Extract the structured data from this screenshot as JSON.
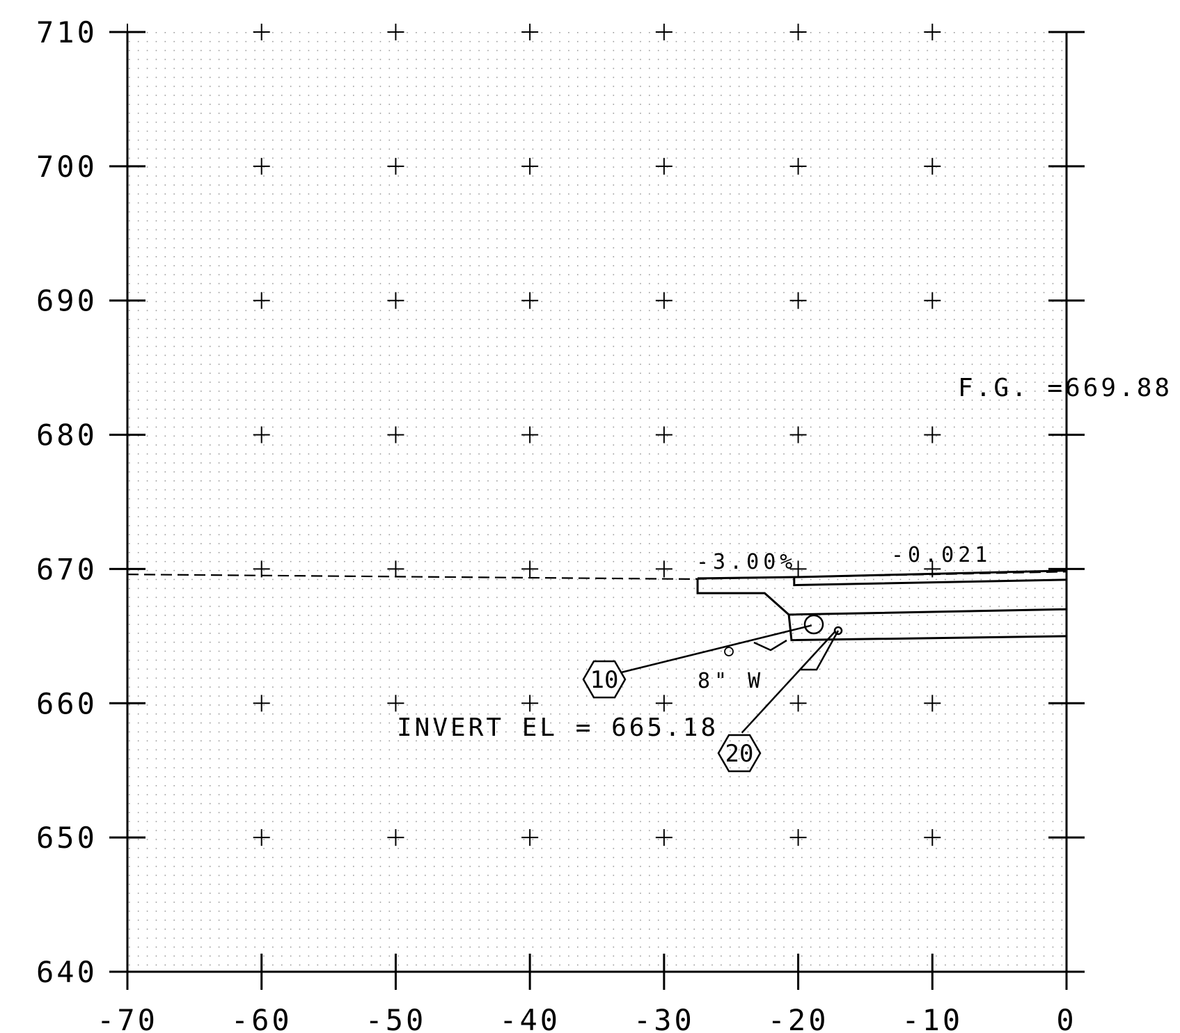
{
  "chart_data": {
    "type": "cross-section",
    "x_ticks": [
      "-70",
      "-60",
      "-50",
      "-40",
      "-30",
      "-20",
      "-10",
      "0"
    ],
    "y_ticks": [
      "640",
      "650",
      "660",
      "670",
      "680",
      "690",
      "700",
      "710"
    ],
    "xlim": [
      -70,
      0
    ],
    "ylim": [
      640,
      710
    ],
    "grid": "dotted, with crosshair markers at 10-unit intervals",
    "annotations": {
      "fg": "F.G. =669.88",
      "slope_left": "-3.00%",
      "slope_right": "-0.021",
      "pipe_size": "8\" W",
      "invert": "INVERT EL = 665.18",
      "callout_a": "10",
      "callout_b": "20"
    },
    "existing_ground_dashed": [
      [
        -70,
        669.6
      ],
      [
        -28,
        669.25
      ],
      [
        -20,
        669.4
      ],
      [
        -10,
        669.6
      ],
      [
        0,
        669.8
      ]
    ],
    "structure_lines": [
      [
        [
          -27.5,
          669.3
        ],
        [
          -20,
          669.4
        ],
        [
          0,
          669.88
        ]
      ],
      [
        [
          -27.5,
          669.3
        ],
        [
          -27.5,
          668.2
        ],
        [
          -22.5,
          668.2
        ],
        [
          -20.7,
          666.6
        ],
        [
          0,
          667.0
        ]
      ],
      [
        [
          -20.3,
          669.4
        ],
        [
          -20.3,
          668.8
        ],
        [
          0,
          669.2
        ]
      ],
      [
        [
          -20.7,
          666.6
        ],
        [
          -20.5,
          664.7
        ],
        [
          0,
          665.0
        ]
      ]
    ],
    "pipes": [
      {
        "label": "10",
        "from": [
          -35.2,
          661.8
        ],
        "to": [
          -19.0,
          665.8
        ]
      },
      {
        "label": "20",
        "from": [
          -24.2,
          657.8
        ],
        "to": [
          -17.2,
          665.4
        ]
      }
    ],
    "colors": {
      "line": "#000000",
      "grid_dot": "#9a9a9a",
      "background": "#ffffff"
    }
  }
}
